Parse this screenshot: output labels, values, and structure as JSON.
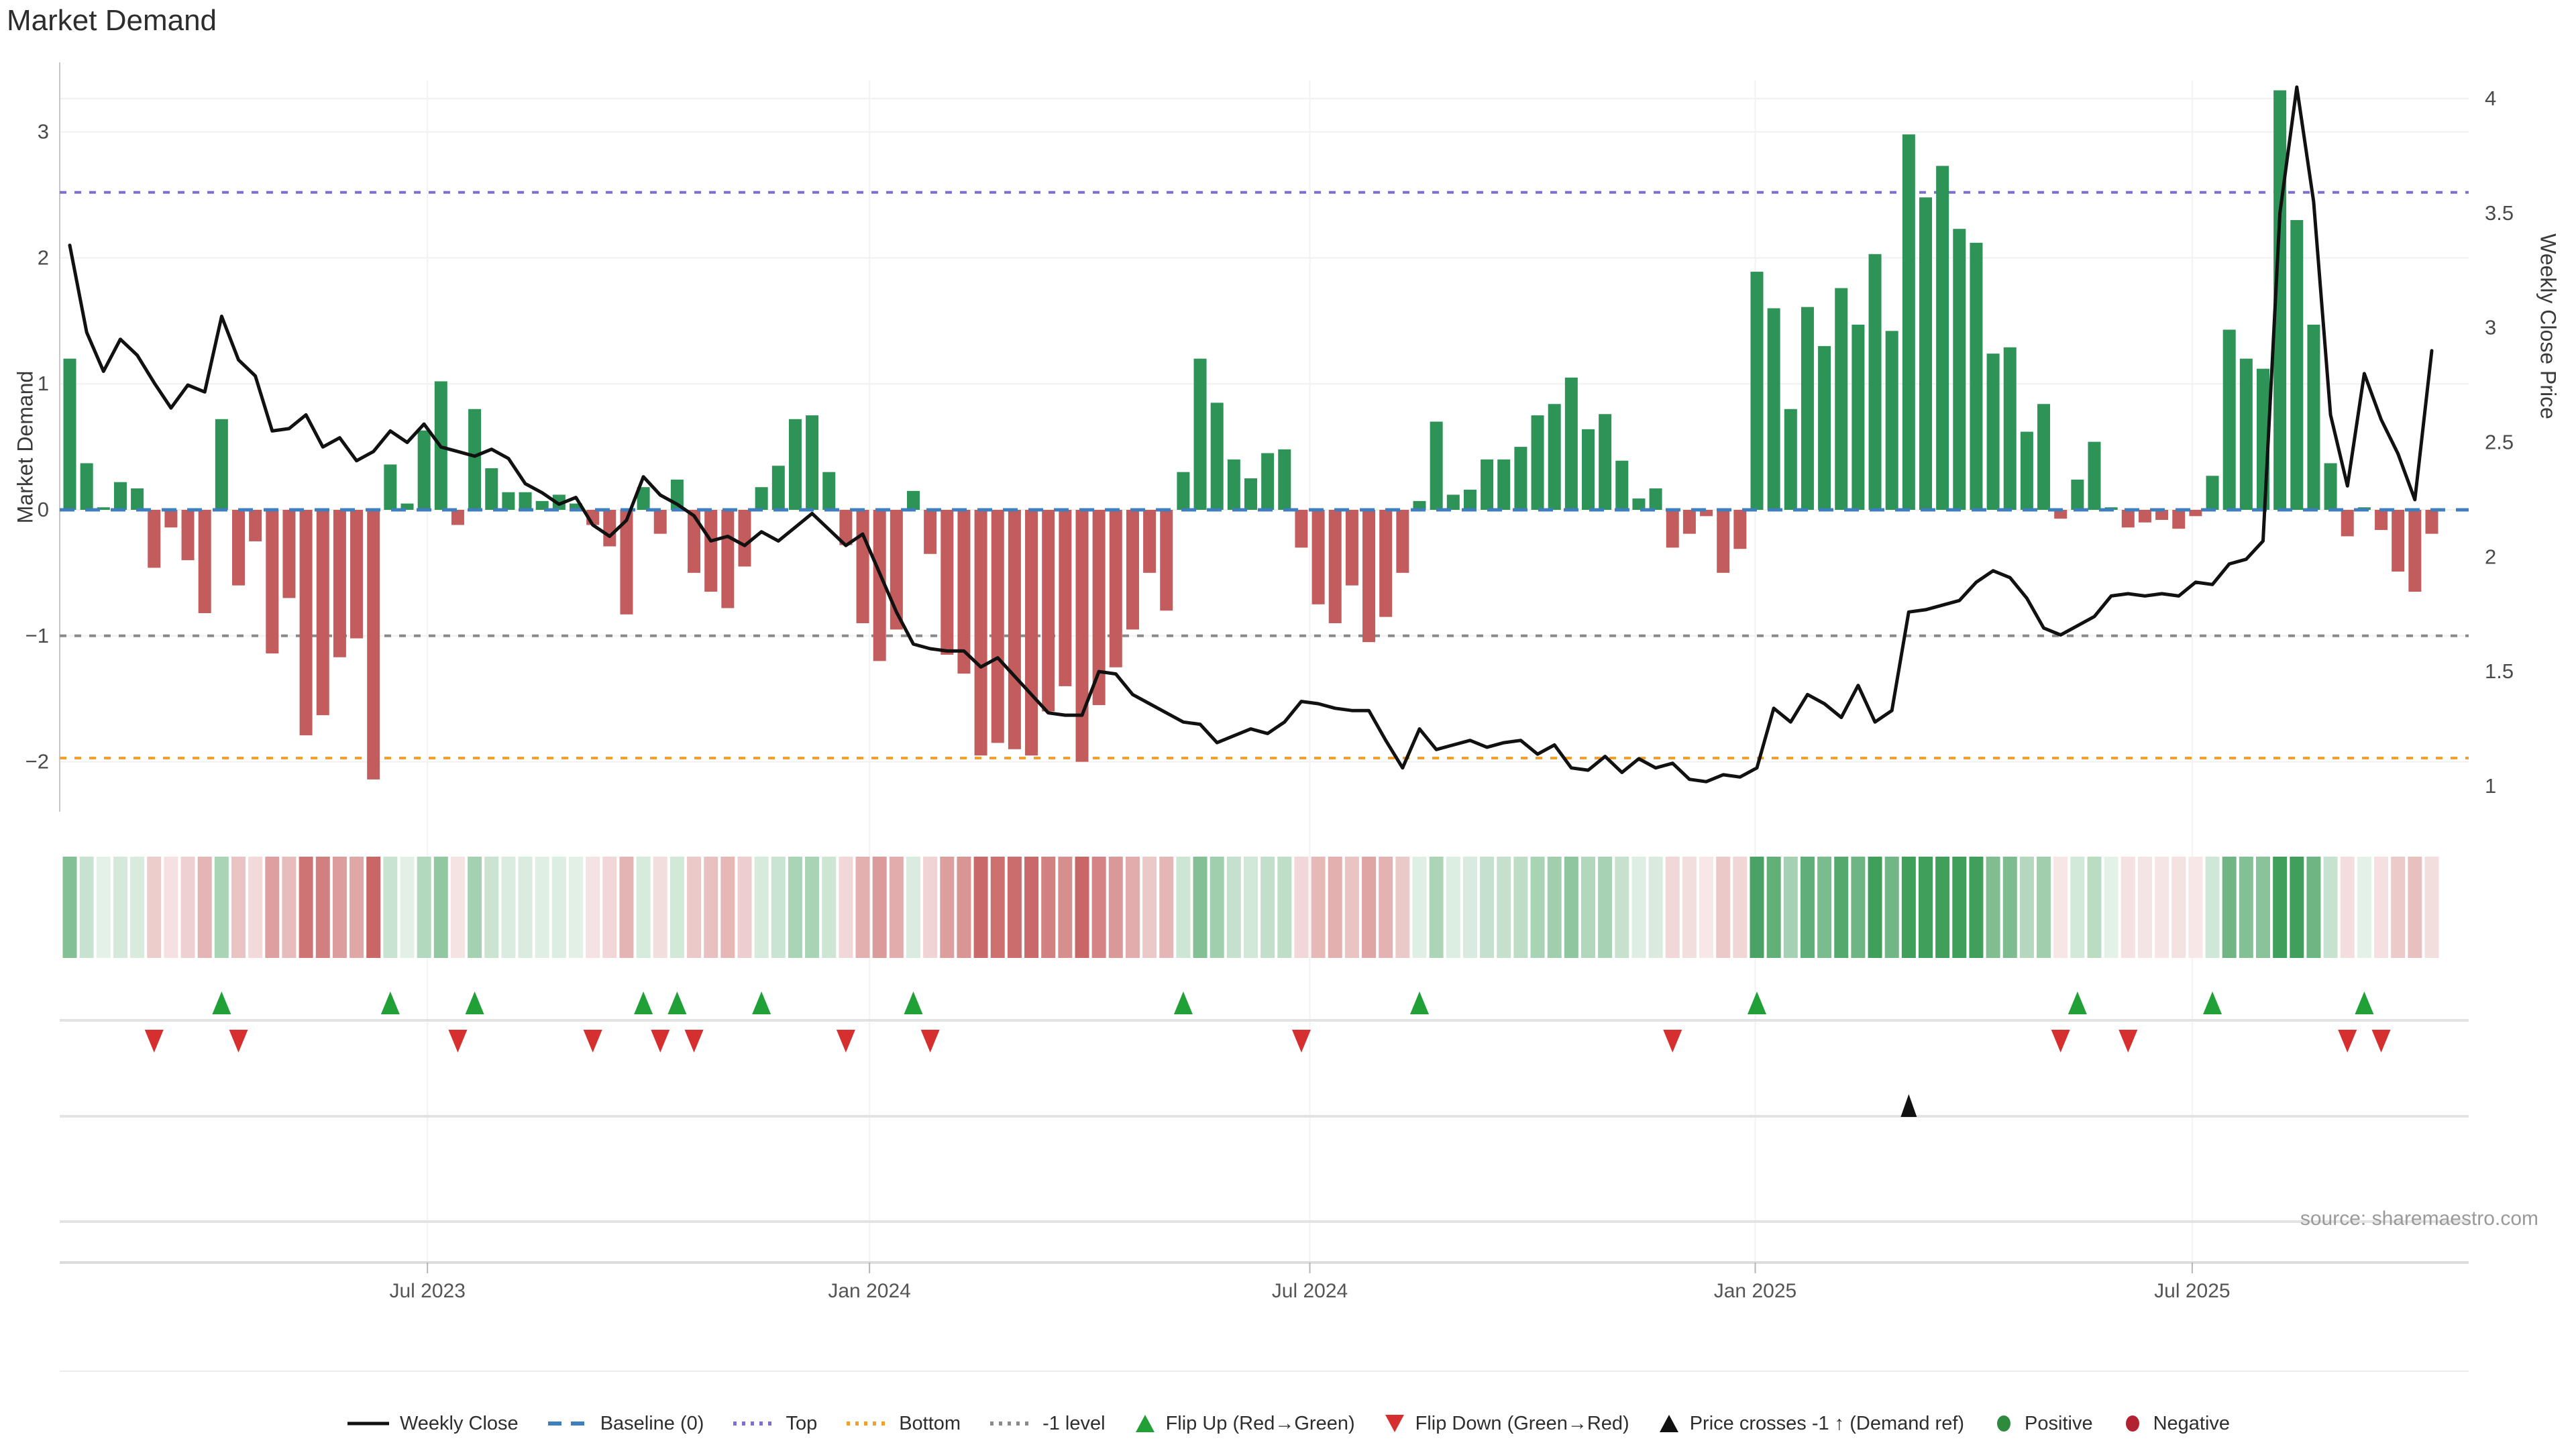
{
  "title": "Market Demand",
  "source_note": "source: sharemaestro.com",
  "axes": {
    "left_label": "Market Demand",
    "right_label": "Weekly Close Price",
    "left_ticks": [
      {
        "label": "3",
        "value": 3
      },
      {
        "label": "2",
        "value": 2
      },
      {
        "label": "1",
        "value": 1
      },
      {
        "label": "0",
        "value": 0
      },
      {
        "label": "−1",
        "value": -1
      },
      {
        "label": "−2",
        "value": -2
      }
    ],
    "right_ticks": [
      {
        "label": "4",
        "value": 4
      },
      {
        "label": "3.5",
        "value": 3.5
      },
      {
        "label": "3",
        "value": 3
      },
      {
        "label": "2.5",
        "value": 2.5
      },
      {
        "label": "2",
        "value": 2
      },
      {
        "label": "1.5",
        "value": 1.5
      },
      {
        "label": "1",
        "value": 1
      }
    ],
    "x_ticks": [
      {
        "label": "Jul 2023",
        "week": 21.2
      },
      {
        "label": "Jan 2024",
        "week": 47.4
      },
      {
        "label": "Jul 2024",
        "week": 73.5
      },
      {
        "label": "Jan 2025",
        "week": 99.9
      },
      {
        "label": "Jul 2025",
        "week": 125.8
      }
    ]
  },
  "reference_lines": {
    "baseline": {
      "label": "Baseline (0)",
      "value": 0,
      "color": "#3f7fbf"
    },
    "top": {
      "label": "Top",
      "value": 2.52,
      "color": "#7b6fd6"
    },
    "bottom": {
      "label": "Bottom",
      "value": -1.97,
      "color": "#f49f2c"
    },
    "minus1": {
      "label": "-1 level",
      "value": -1,
      "color": "#8a8a8a"
    }
  },
  "colors": {
    "bar_positive": "#2e9356",
    "bar_negative": "#c35d5d",
    "price_line": "#111111",
    "flip_up": "#21a038",
    "flip_down": "#d62f2f",
    "price_cross": "#111111",
    "heat_green_rgb": [
      44,
      148,
      74
    ],
    "heat_red_rgb": [
      195,
      85,
      85
    ],
    "grid": "#f0f0f0",
    "spine": "#c8c8c8",
    "separator": "#e3e3e3",
    "tick_text": "#4a4a4a"
  },
  "legend": [
    {
      "label": "Weekly Close",
      "swatch": "line",
      "color": "#111111"
    },
    {
      "label": "Baseline (0)",
      "swatch": "dash",
      "color": "#3f7fbf"
    },
    {
      "label": "Top",
      "swatch": "dot",
      "color": "#7b6fd6"
    },
    {
      "label": "Bottom",
      "swatch": "dot",
      "color": "#f49f2c"
    },
    {
      "label": "-1 level",
      "swatch": "dot",
      "color": "#8a8a8a"
    },
    {
      "label": "Flip Up (Red→Green)",
      "swatch": "tri-up",
      "color": "#21a038"
    },
    {
      "label": "Flip Down (Green→Red)",
      "swatch": "tri-down",
      "color": "#d62f2f"
    },
    {
      "label": "Price crosses -1 ↑ (Demand ref)",
      "swatch": "tri-up",
      "color": "#111111"
    },
    {
      "label": "Positive",
      "swatch": "circle",
      "color": "#2e8b3d"
    },
    {
      "label": "Negative",
      "swatch": "circle",
      "color": "#b22230"
    }
  ],
  "chart_data": {
    "type": "combo_bar_line_heatmap",
    "x_unit": "week_index",
    "n_weeks": 141,
    "grid": "on",
    "demand_axis_range": [
      -2.32,
      3.55
    ],
    "price_axis_range": [
      0.93,
      4.16
    ],
    "demand_series": {
      "name": "Market Demand (weekly bars)",
      "values": [
        1.2,
        0.37,
        0.02,
        0.22,
        0.17,
        -0.46,
        -0.14,
        -0.4,
        -0.82,
        0.72,
        -0.6,
        -0.25,
        -1.14,
        -0.7,
        -1.79,
        -1.63,
        -1.17,
        -1.02,
        -2.14,
        0.36,
        0.05,
        0.63,
        1.02,
        -0.12,
        0.8,
        0.33,
        0.14,
        0.14,
        0.07,
        0.12,
        0.05,
        -0.12,
        -0.29,
        -0.83,
        0.18,
        -0.19,
        0.24,
        -0.5,
        -0.65,
        -0.78,
        -0.45,
        0.18,
        0.35,
        0.72,
        0.75,
        0.3,
        -0.28,
        -0.9,
        -1.2,
        -0.95,
        0.15,
        -0.35,
        -1.15,
        -1.3,
        -1.95,
        -1.85,
        -1.9,
        -1.95,
        -1.6,
        -1.4,
        -2.0,
        -1.55,
        -1.25,
        -0.95,
        -0.5,
        -0.8,
        0.3,
        1.2,
        0.85,
        0.4,
        0.25,
        0.45,
        0.48,
        -0.3,
        -0.75,
        -0.9,
        -0.6,
        -1.05,
        -0.85,
        -0.5,
        0.07,
        0.7,
        0.12,
        0.16,
        0.4,
        0.4,
        0.5,
        0.75,
        0.84,
        1.05,
        0.64,
        0.76,
        0.39,
        0.09,
        0.17,
        -0.3,
        -0.19,
        -0.05,
        -0.5,
        -0.31,
        1.89,
        1.6,
        0.8,
        1.61,
        1.3,
        1.76,
        1.47,
        2.03,
        1.42,
        2.98,
        2.48,
        2.73,
        2.23,
        2.12,
        1.24,
        1.29,
        0.62,
        0.84,
        -0.07,
        0.24,
        0.54,
        0.02,
        -0.14,
        -0.1,
        -0.08,
        -0.15,
        -0.05,
        0.27,
        1.43,
        1.2,
        1.12,
        3.33,
        2.3,
        1.47,
        0.37,
        -0.21,
        0.02,
        -0.16,
        -0.49,
        -0.65,
        -0.19
      ]
    },
    "price_series": {
      "name": "Weekly Close",
      "values": [
        3.36,
        2.98,
        2.81,
        2.95,
        2.88,
        2.76,
        2.65,
        2.75,
        2.72,
        3.05,
        2.86,
        2.79,
        2.55,
        2.56,
        2.62,
        2.48,
        2.52,
        2.42,
        2.46,
        2.55,
        2.5,
        2.58,
        2.48,
        2.46,
        2.44,
        2.47,
        2.43,
        2.32,
        2.28,
        2.23,
        2.26,
        2.14,
        2.09,
        2.16,
        2.35,
        2.27,
        2.23,
        2.18,
        2.07,
        2.09,
        2.05,
        2.11,
        2.07,
        2.13,
        2.19,
        2.12,
        2.05,
        2.1,
        1.93,
        1.76,
        1.62,
        1.6,
        1.59,
        1.59,
        1.52,
        1.56,
        1.48,
        1.4,
        1.32,
        1.31,
        1.31,
        1.5,
        1.49,
        1.4,
        1.36,
        1.32,
        1.28,
        1.27,
        1.19,
        1.22,
        1.25,
        1.23,
        1.28,
        1.37,
        1.36,
        1.34,
        1.33,
        1.33,
        1.2,
        1.08,
        1.25,
        1.16,
        1.18,
        1.2,
        1.17,
        1.19,
        1.2,
        1.14,
        1.18,
        1.08,
        1.07,
        1.13,
        1.06,
        1.12,
        1.08,
        1.1,
        1.03,
        1.02,
        1.05,
        1.04,
        1.08,
        1.34,
        1.28,
        1.4,
        1.36,
        1.3,
        1.44,
        1.28,
        1.33,
        1.76,
        1.77,
        1.79,
        1.81,
        1.89,
        1.94,
        1.91,
        1.82,
        1.69,
        1.66,
        1.7,
        1.74,
        1.83,
        1.84,
        1.83,
        1.84,
        1.83,
        1.89,
        1.88,
        1.97,
        1.99,
        2.07,
        3.5,
        4.05,
        3.55,
        2.62,
        2.31,
        2.8,
        2.6,
        2.45,
        2.25,
        2.9
      ]
    },
    "heatmap": {
      "source": "demand_series",
      "note": "one cell per week, red-green intensity of demand value"
    },
    "flip_up_weeks": [
      9,
      19,
      24,
      34,
      36,
      41,
      50,
      66,
      80,
      100,
      119,
      127,
      136
    ],
    "flip_down_weeks": [
      5,
      10,
      23,
      31,
      35,
      37,
      46,
      51,
      73,
      95,
      118,
      122,
      135,
      137
    ],
    "price_cross_week": 109
  }
}
